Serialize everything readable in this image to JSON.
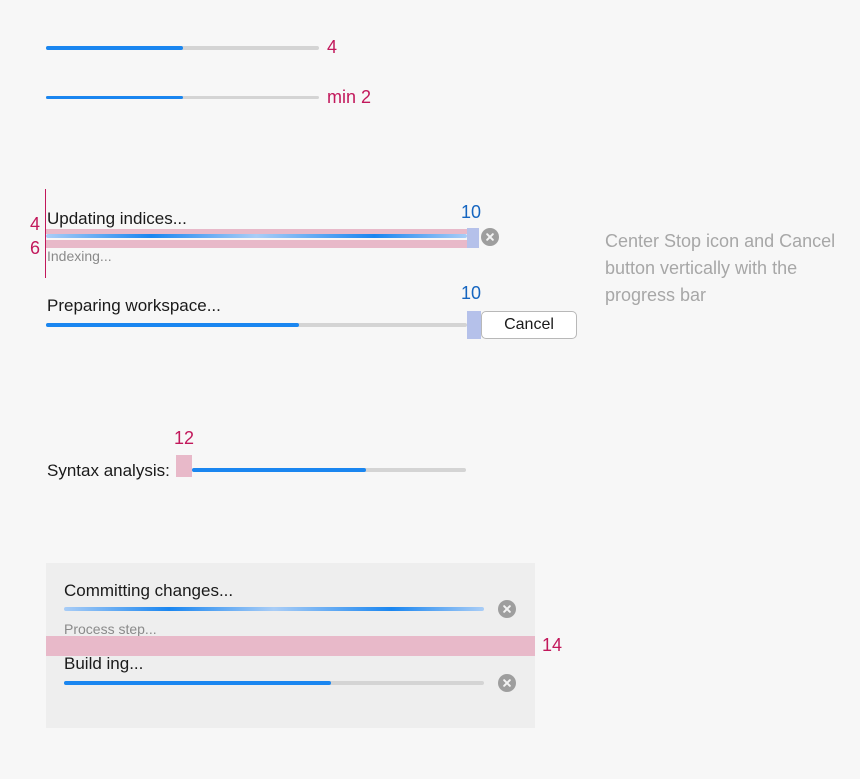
{
  "spec1": {
    "annotation": "4",
    "progress": 0.5,
    "colors": {
      "fill": "#1a86f0",
      "track": "#d4d4d4",
      "annotation": "#c2185b"
    }
  },
  "spec2": {
    "annotation": "min 2",
    "progress": 0.5
  },
  "updating": {
    "title": "Updating indices...",
    "subtitle": "Indexing...",
    "annotation_top": "4",
    "annotation_bottom": "6",
    "annotation_gap": "10",
    "mode": "indeterminate",
    "stop_icon": "stop-circle-x-icon"
  },
  "preparing": {
    "title": "Preparing workspace...",
    "annotation_gap": "10",
    "cancel_label": "Cancel",
    "progress": 0.6
  },
  "syntax": {
    "label": "Syntax analysis:",
    "annotation_gap": "12",
    "progress": 0.635
  },
  "panel": {
    "committing": {
      "title": "Committing changes...",
      "subtitle": "Process step...",
      "mode": "indeterminate",
      "stop_icon": "stop-circle-x-icon"
    },
    "spacing_annotation": "14",
    "building": {
      "title": "Build ing...",
      "progress": 0.635,
      "stop_icon": "stop-circle-x-icon"
    }
  },
  "note": {
    "text": "Center Stop icon and Cancel button vertically with the progress bar",
    "color": "#a7a7a7"
  }
}
